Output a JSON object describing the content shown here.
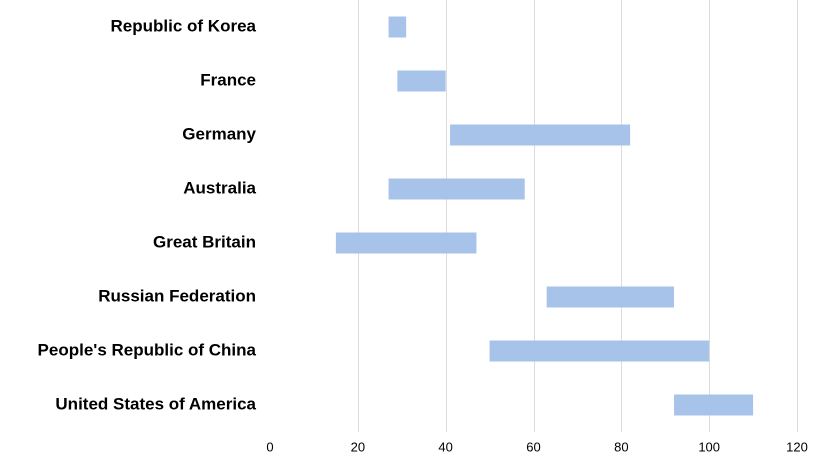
{
  "chart_data": {
    "type": "bar",
    "orientation": "horizontal",
    "subtype": "floating-range",
    "title": "",
    "xlabel": "",
    "ylabel": "",
    "categories": [
      "Republic of Korea",
      "France",
      "Germany",
      "Australia",
      "Great Britain",
      "Russian Federation",
      "People's Republic of China",
      "United States of America"
    ],
    "ranges": [
      [
        27,
        31
      ],
      [
        29,
        40
      ],
      [
        41,
        82
      ],
      [
        27,
        58
      ],
      [
        15,
        47
      ],
      [
        63,
        92
      ],
      [
        50,
        100
      ],
      [
        92,
        110
      ]
    ],
    "xlim": [
      0,
      120
    ],
    "xticks": [
      0,
      20,
      40,
      60,
      80,
      100,
      120
    ],
    "grid": "vertical",
    "legend": "none",
    "bar_color": "#a7c3ea"
  }
}
